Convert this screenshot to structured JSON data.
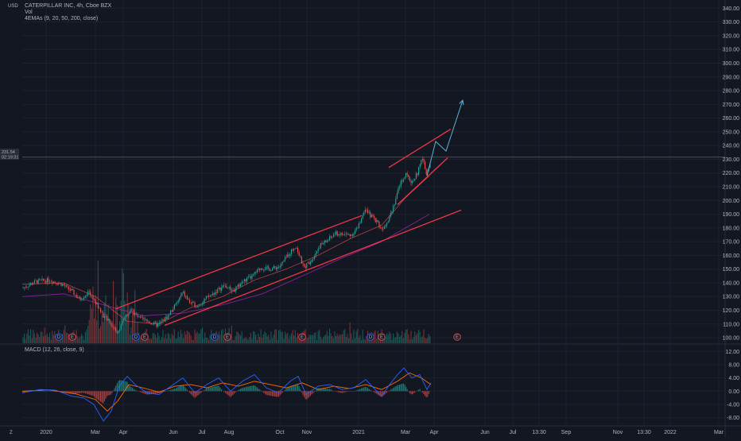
{
  "header": {
    "symbol": "CATERPILLAR INC, 4h, Cboe BZX",
    "vol": "Vol",
    "ema_label": "4EMAs (9, 20, 50, 200, close)",
    "currency": "USD"
  },
  "price_tag": {
    "price": "231.54",
    "countdown": "02:19:31"
  },
  "macd_label": "MACD (12, 26, close, 9)",
  "corner_label": "Z",
  "badge_letters": {
    "dividend": "D",
    "earnings": "E"
  },
  "colors": {
    "background": "#131722",
    "grid": "#1e222d",
    "up": "#26a69a",
    "down": "#ef5350",
    "trendline": "#f23645",
    "forecast": "#5ab1d3",
    "ema_purple": "#9c27b0",
    "macd_line": "#2962ff",
    "signal_line": "#ff6d00"
  },
  "chart_data": [
    {
      "type": "candlestick",
      "title": "CATERPILLAR INC, 4h, Cboe BZX",
      "ylabel": "USD",
      "ylim": [
        96,
        346
      ],
      "y_ticks": [
        "100.00",
        "110.00",
        "120.00",
        "130.00",
        "140.00",
        "150.00",
        "160.00",
        "170.00",
        "180.00",
        "190.00",
        "200.00",
        "210.00",
        "220.00",
        "230.00",
        "240.00",
        "250.00",
        "260.00",
        "270.00",
        "280.00",
        "290.00",
        "300.00",
        "310.00",
        "320.00",
        "330.00",
        "340.00"
      ],
      "x_ticks": [
        "2020",
        "Mar",
        "Apr",
        "Jun",
        "Jul",
        "Aug",
        "Oct",
        "Nov",
        "2021",
        "Mar",
        "Apr",
        "Jun",
        "Jul",
        "13:30",
        "Sep",
        "Nov",
        "13:30",
        "2022",
        "Mar"
      ],
      "price_path": [
        {
          "x": 28,
          "y": 136
        },
        {
          "x": 45,
          "y": 141
        },
        {
          "x": 62,
          "y": 142
        },
        {
          "x": 78,
          "y": 139
        },
        {
          "x": 90,
          "y": 134
        },
        {
          "x": 100,
          "y": 128
        },
        {
          "x": 112,
          "y": 133
        },
        {
          "x": 122,
          "y": 124
        },
        {
          "x": 130,
          "y": 116
        },
        {
          "x": 140,
          "y": 110
        },
        {
          "x": 148,
          "y": 103
        },
        {
          "x": 156,
          "y": 115
        },
        {
          "x": 165,
          "y": 120
        },
        {
          "x": 175,
          "y": 114
        },
        {
          "x": 186,
          "y": 112
        },
        {
          "x": 198,
          "y": 109
        },
        {
          "x": 210,
          "y": 115
        },
        {
          "x": 222,
          "y": 125
        },
        {
          "x": 230,
          "y": 133
        },
        {
          "x": 238,
          "y": 126
        },
        {
          "x": 248,
          "y": 123
        },
        {
          "x": 258,
          "y": 128
        },
        {
          "x": 270,
          "y": 133
        },
        {
          "x": 282,
          "y": 138
        },
        {
          "x": 294,
          "y": 134
        },
        {
          "x": 305,
          "y": 141
        },
        {
          "x": 316,
          "y": 144
        },
        {
          "x": 328,
          "y": 151
        },
        {
          "x": 340,
          "y": 150
        },
        {
          "x": 352,
          "y": 152
        },
        {
          "x": 362,
          "y": 160
        },
        {
          "x": 372,
          "y": 167
        },
        {
          "x": 382,
          "y": 151
        },
        {
          "x": 392,
          "y": 157
        },
        {
          "x": 402,
          "y": 167
        },
        {
          "x": 412,
          "y": 171
        },
        {
          "x": 422,
          "y": 176
        },
        {
          "x": 432,
          "y": 175
        },
        {
          "x": 442,
          "y": 175
        },
        {
          "x": 450,
          "y": 180
        },
        {
          "x": 458,
          "y": 193
        },
        {
          "x": 466,
          "y": 189
        },
        {
          "x": 474,
          "y": 185
        },
        {
          "x": 480,
          "y": 179
        },
        {
          "x": 488,
          "y": 186
        },
        {
          "x": 496,
          "y": 198
        },
        {
          "x": 503,
          "y": 212
        },
        {
          "x": 510,
          "y": 219
        },
        {
          "x": 518,
          "y": 213
        },
        {
          "x": 525,
          "y": 220
        },
        {
          "x": 531,
          "y": 231
        },
        {
          "x": 537,
          "y": 219
        },
        {
          "x": 542,
          "y": 228
        }
      ],
      "ema_slow_path": [
        {
          "x": 28,
          "y": 130
        },
        {
          "x": 80,
          "y": 132
        },
        {
          "x": 130,
          "y": 124
        },
        {
          "x": 180,
          "y": 116
        },
        {
          "x": 230,
          "y": 118
        },
        {
          "x": 280,
          "y": 124
        },
        {
          "x": 330,
          "y": 132
        },
        {
          "x": 380,
          "y": 145
        },
        {
          "x": 430,
          "y": 158
        },
        {
          "x": 480,
          "y": 170
        },
        {
          "x": 540,
          "y": 190
        }
      ],
      "ema_fast_path": [
        {
          "x": 28,
          "y": 139
        },
        {
          "x": 80,
          "y": 140
        },
        {
          "x": 120,
          "y": 130
        },
        {
          "x": 160,
          "y": 112
        },
        {
          "x": 200,
          "y": 110
        },
        {
          "x": 240,
          "y": 122
        },
        {
          "x": 280,
          "y": 130
        },
        {
          "x": 320,
          "y": 142
        },
        {
          "x": 360,
          "y": 150
        },
        {
          "x": 400,
          "y": 160
        },
        {
          "x": 440,
          "y": 172
        },
        {
          "x": 480,
          "y": 182
        },
        {
          "x": 510,
          "y": 202
        },
        {
          "x": 540,
          "y": 218
        }
      ],
      "trendlines": [
        {
          "x1": 145,
          "y1": 121,
          "x2": 455,
          "y2": 189
        },
        {
          "x1": 207,
          "y1": 109,
          "x2": 580,
          "y2": 193
        },
        {
          "x1": 489,
          "y1": 224,
          "x2": 567,
          "y2": 252
        },
        {
          "x1": 500,
          "y1": 197,
          "x2": 563,
          "y2": 231
        }
      ],
      "forecast_path": [
        {
          "x": 537,
          "y": 218
        },
        {
          "x": 548,
          "y": 243
        },
        {
          "x": 561,
          "y": 236
        },
        {
          "x": 582,
          "y": 273
        }
      ],
      "current_price": 231.54
    },
    {
      "type": "line",
      "title": "MACD (12, 26, close, 9)",
      "ylim": [
        -10,
        13.5
      ],
      "y_ticks": [
        "12.00",
        "8.00",
        "4.00",
        "0.00",
        "-4.00",
        "-8.00"
      ],
      "macd_path": [
        {
          "x": 28,
          "y": -0.5
        },
        {
          "x": 50,
          "y": 0.5
        },
        {
          "x": 70,
          "y": 0.3
        },
        {
          "x": 90,
          "y": -1.5
        },
        {
          "x": 105,
          "y": -2
        },
        {
          "x": 118,
          "y": -4
        },
        {
          "x": 130,
          "y": -9
        },
        {
          "x": 140,
          "y": -6
        },
        {
          "x": 150,
          "y": 1.5
        },
        {
          "x": 160,
          "y": 4.5
        },
        {
          "x": 170,
          "y": 2
        },
        {
          "x": 185,
          "y": -0.5
        },
        {
          "x": 200,
          "y": -1
        },
        {
          "x": 215,
          "y": 1.5
        },
        {
          "x": 230,
          "y": 4
        },
        {
          "x": 245,
          "y": -0.5
        },
        {
          "x": 260,
          "y": 2
        },
        {
          "x": 275,
          "y": 4
        },
        {
          "x": 290,
          "y": 0
        },
        {
          "x": 305,
          "y": 3
        },
        {
          "x": 320,
          "y": 5
        },
        {
          "x": 335,
          "y": 1
        },
        {
          "x": 350,
          "y": -0.5
        },
        {
          "x": 365,
          "y": 3
        },
        {
          "x": 375,
          "y": 4.5
        },
        {
          "x": 385,
          "y": -1
        },
        {
          "x": 400,
          "y": 1.5
        },
        {
          "x": 415,
          "y": 2
        },
        {
          "x": 430,
          "y": 0.5
        },
        {
          "x": 445,
          "y": 1
        },
        {
          "x": 460,
          "y": 3.5
        },
        {
          "x": 470,
          "y": 1
        },
        {
          "x": 480,
          "y": -1.5
        },
        {
          "x": 490,
          "y": 2
        },
        {
          "x": 500,
          "y": 5
        },
        {
          "x": 508,
          "y": 7
        },
        {
          "x": 518,
          "y": 4
        },
        {
          "x": 528,
          "y": 5
        },
        {
          "x": 537,
          "y": 0.5
        },
        {
          "x": 542,
          "y": 2.5
        }
      ],
      "signal_path": [
        {
          "x": 28,
          "y": 0
        },
        {
          "x": 60,
          "y": 0.4
        },
        {
          "x": 95,
          "y": -0.8
        },
        {
          "x": 120,
          "y": -2.5
        },
        {
          "x": 135,
          "y": -6
        },
        {
          "x": 148,
          "y": -3
        },
        {
          "x": 162,
          "y": 2
        },
        {
          "x": 180,
          "y": 1
        },
        {
          "x": 200,
          "y": -0.3
        },
        {
          "x": 220,
          "y": 1.5
        },
        {
          "x": 240,
          "y": 2
        },
        {
          "x": 260,
          "y": 1
        },
        {
          "x": 280,
          "y": 2.5
        },
        {
          "x": 300,
          "y": 1.5
        },
        {
          "x": 320,
          "y": 3
        },
        {
          "x": 340,
          "y": 2
        },
        {
          "x": 360,
          "y": 1
        },
        {
          "x": 380,
          "y": 2.5
        },
        {
          "x": 400,
          "y": 0.5
        },
        {
          "x": 420,
          "y": 1.5
        },
        {
          "x": 440,
          "y": 0.8
        },
        {
          "x": 460,
          "y": 2
        },
        {
          "x": 480,
          "y": 0.5
        },
        {
          "x": 500,
          "y": 3
        },
        {
          "x": 515,
          "y": 5.5
        },
        {
          "x": 530,
          "y": 4
        },
        {
          "x": 542,
          "y": 2
        }
      ]
    }
  ]
}
